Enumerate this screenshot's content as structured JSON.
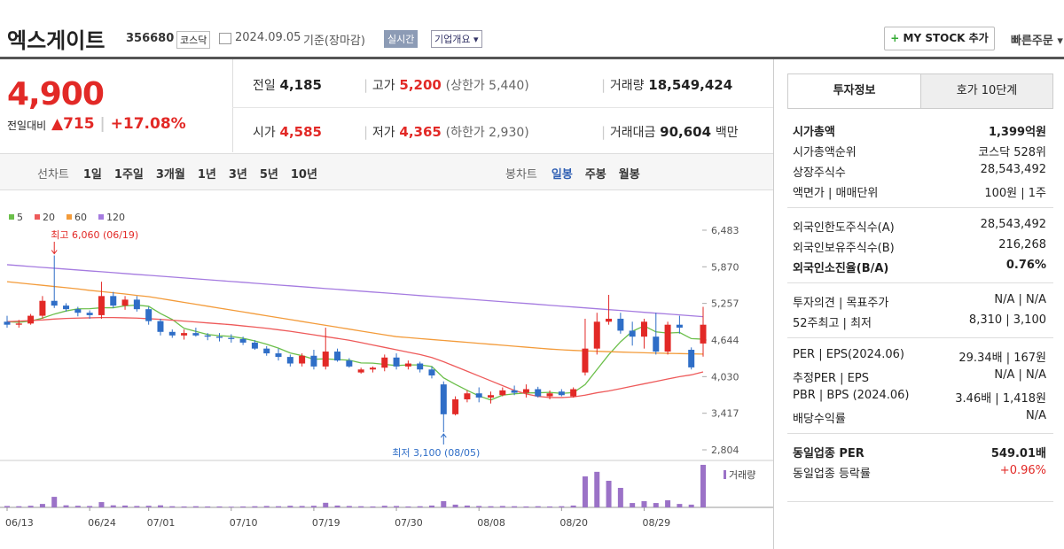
{
  "header": {
    "name": "엑스게이트",
    "code": "356680",
    "market": "코스닥",
    "date": "2024.09.05",
    "basis": "기준(장마감)",
    "realtime": "실시간",
    "overview": "기업개요",
    "my_stock": "MY STOCK 추가",
    "quick_order": "빠른주문"
  },
  "price": {
    "current": "4,900",
    "change_label": "전일대비",
    "change": "715",
    "change_pct": "+17.08%"
  },
  "quotes": [
    {
      "label": "전일",
      "value": "4,185"
    },
    {
      "label": "고가",
      "value": "5,200",
      "extra": "(상한가 5,440)"
    },
    {
      "label": "거래량",
      "value": "18,549,424"
    },
    {
      "label": "시가",
      "value": "4,585"
    },
    {
      "label": "저가",
      "value": "4,365",
      "extra": "(하한가 2,930)"
    },
    {
      "label": "거래대금",
      "value": "90,604",
      "unit": "백만"
    }
  ],
  "line_periods": {
    "label": "선차트",
    "items": [
      "1일",
      "1주일",
      "3개월",
      "1년",
      "3년",
      "5년",
      "10년"
    ]
  },
  "candle_periods": {
    "label": "봉차트",
    "items": [
      "일봉",
      "주봉",
      "월봉"
    ]
  },
  "chart_data": {
    "type": "candlestick",
    "categories": [
      "06/13",
      null,
      null,
      null,
      null,
      null,
      null,
      "06/24",
      null,
      null,
      null,
      null,
      "07/01",
      null,
      null,
      null,
      null,
      null,
      null,
      "07/10",
      null,
      null,
      null,
      null,
      null,
      null,
      "07/19",
      null,
      null,
      null,
      null,
      null,
      null,
      "07/30",
      null,
      null,
      null,
      null,
      null,
      null,
      "08/08",
      null,
      null,
      null,
      null,
      null,
      null,
      "08/20",
      null,
      null,
      null,
      null,
      null,
      null,
      "08/29",
      null,
      null,
      null,
      null,
      null
    ],
    "open": [
      4950,
      4900,
      4920,
      5050,
      5300,
      5220,
      5160,
      5100,
      5060,
      5380,
      5220,
      5320,
      5160,
      4960,
      4780,
      4720,
      4760,
      4720,
      4700,
      4680,
      4660,
      4600,
      4500,
      4420,
      4360,
      4250,
      4380,
      4200,
      4450,
      4300,
      4100,
      4150,
      4180,
      4350,
      4200,
      4250,
      4150,
      3900,
      3400,
      3650,
      3750,
      3680,
      3720,
      3800,
      3760,
      3820,
      3700,
      3780,
      3700,
      4100,
      4500,
      4950,
      5000,
      4800,
      4700,
      4700,
      4450,
      4900,
      4480,
      4585
    ],
    "high": [
      5050,
      4980,
      5080,
      5380,
      6060,
      5260,
      5200,
      5140,
      5620,
      5450,
      5380,
      5380,
      5200,
      5000,
      4820,
      4820,
      4850,
      4760,
      4760,
      4740,
      4700,
      4640,
      4540,
      4500,
      4400,
      4420,
      4480,
      4850,
      4500,
      4340,
      4180,
      4200,
      4400,
      4420,
      4300,
      4280,
      4200,
      3950,
      3700,
      3800,
      3850,
      3780,
      3850,
      3880,
      3900,
      3860,
      3800,
      3820,
      3850,
      5000,
      5100,
      5400,
      5100,
      4950,
      5000,
      5100,
      4950,
      5050,
      4520,
      5200
    ],
    "low": [
      4850,
      4850,
      4900,
      5000,
      5180,
      5120,
      5040,
      5000,
      5000,
      5180,
      5150,
      5120,
      4900,
      4720,
      4680,
      4650,
      4700,
      4640,
      4620,
      4600,
      4560,
      4480,
      4380,
      4300,
      4200,
      4200,
      4150,
      4150,
      4280,
      4180,
      4080,
      4100,
      4120,
      4150,
      4150,
      4100,
      4000,
      3100,
      3380,
      3600,
      3600,
      3580,
      3700,
      3720,
      3680,
      3680,
      3650,
      3700,
      3680,
      4050,
      4400,
      4900,
      4750,
      4550,
      4500,
      4400,
      4400,
      4750,
      4150,
      4365
    ],
    "close": [
      4900,
      4920,
      5050,
      5300,
      5220,
      5160,
      5100,
      5060,
      5380,
      5220,
      5320,
      5160,
      4960,
      4780,
      4720,
      4760,
      4720,
      4700,
      4680,
      4660,
      4600,
      4500,
      4420,
      4360,
      4250,
      4380,
      4200,
      4450,
      4300,
      4200,
      4150,
      4180,
      4350,
      4200,
      4250,
      4150,
      4050,
      3400,
      3650,
      3750,
      3680,
      3720,
      3800,
      3760,
      3820,
      3700,
      3750,
      3720,
      3820,
      4500,
      4950,
      5000,
      4800,
      4700,
      4950,
      4450,
      4900,
      4850,
      4185,
      4900
    ],
    "up_color": "#e22926",
    "down_color": "#2f6ec7",
    "ma": [
      {
        "name": "5",
        "color": "#6bbf4a",
        "values": [
          4950,
          4940,
          4960,
          5010,
          5078,
          5130,
          5166,
          5168,
          5184,
          5184,
          5216,
          5228,
          5208,
          5088,
          4988,
          4840,
          4788,
          4736,
          4716,
          4704,
          4672,
          4628,
          4572,
          4508,
          4426,
          4382,
          4322,
          4328,
          4316,
          4306,
          4260,
          4256,
          4236,
          4216,
          4226,
          4226,
          4200,
          4010,
          3900,
          3800,
          3706,
          3640,
          3720,
          3742,
          3756,
          3760,
          3766,
          3750,
          3762,
          3898,
          4148,
          4398,
          4614,
          4790,
          4880,
          4780,
          4760,
          4770,
          4667,
          4657
        ]
      },
      {
        "name": "20",
        "color": "#ee5a5a",
        "values": [
          4950,
          4960,
          4970,
          4980,
          4995,
          5005,
          5010,
          5015,
          5020,
          5020,
          5015,
          5010,
          5000,
          4990,
          4975,
          4960,
          4945,
          4930,
          4915,
          4900,
          4880,
          4860,
          4840,
          4815,
          4790,
          4760,
          4730,
          4700,
          4670,
          4640,
          4600,
          4560,
          4520,
          4480,
          4440,
          4400,
          4350,
          4280,
          4200,
          4120,
          4040,
          3960,
          3880,
          3800,
          3740,
          3700,
          3680,
          3680,
          3690,
          3720,
          3760,
          3790,
          3830,
          3870,
          3910,
          3950,
          3990,
          4030,
          4060,
          4110
        ]
      },
      {
        "name": "60",
        "color": "#f39b3a",
        "values": [
          5620,
          5600,
          5580,
          5560,
          5540,
          5520,
          5500,
          5475,
          5455,
          5435,
          5415,
          5390,
          5370,
          5338,
          5306,
          5274,
          5242,
          5210,
          5178,
          5146,
          5114,
          5082,
          5050,
          5018,
          4986,
          4954,
          4922,
          4890,
          4858,
          4826,
          4794,
          4762,
          4730,
          4700,
          4684,
          4668,
          4652,
          4636,
          4620,
          4604,
          4588,
          4572,
          4556,
          4540,
          4524,
          4508,
          4492,
          4480,
          4470,
          4462,
          4455,
          4448,
          4442,
          4436,
          4430,
          4425,
          4420,
          4416,
          4412,
          4408
        ]
      },
      {
        "name": "120",
        "color": "#a57be0",
        "values": [
          5905,
          5890,
          5875,
          5860,
          5846,
          5831,
          5816,
          5801,
          5787,
          5772,
          5757,
          5742,
          5728,
          5713,
          5698,
          5683,
          5669,
          5654,
          5639,
          5624,
          5610,
          5595,
          5580,
          5565,
          5551,
          5536,
          5521,
          5506,
          5492,
          5477,
          5462,
          5447,
          5433,
          5418,
          5403,
          5388,
          5374,
          5359,
          5344,
          5329,
          5315,
          5300,
          5285,
          5270,
          5256,
          5241,
          5226,
          5211,
          5197,
          5182,
          5167,
          5152,
          5138,
          5123,
          5108,
          5093,
          5079,
          5064,
          5049,
          5034
        ]
      }
    ],
    "ylim": [
      2626,
      6631
    ],
    "yticks": [
      {
        "value": 6483,
        "label": "6,483"
      },
      {
        "value": 5870,
        "label": "5,870"
      },
      {
        "value": 5257,
        "label": "5,257"
      },
      {
        "value": 4644,
        "label": "4,644"
      },
      {
        "value": 4030,
        "label": "4,030"
      },
      {
        "value": 3417,
        "label": "3,417"
      },
      {
        "value": 2804,
        "label": "2,804"
      }
    ],
    "volume_label": "거래량",
    "volume_color": "#9b72c7",
    "volume_lim": [
      0,
      19300000
    ],
    "volume": [
      600000,
      500000,
      700000,
      1500000,
      4600000,
      900000,
      700000,
      600000,
      2300000,
      900000,
      800000,
      600000,
      700000,
      900000,
      500000,
      400000,
      500000,
      400000,
      400000,
      300000,
      400000,
      500000,
      600000,
      500000,
      700000,
      600000,
      700000,
      2000000,
      800000,
      600000,
      500000,
      400000,
      700000,
      600000,
      400000,
      500000,
      800000,
      2700000,
      1200000,
      800000,
      600000,
      500000,
      600000,
      500000,
      400000,
      500000,
      400000,
      500000,
      800000,
      13500000,
      15500000,
      11600000,
      8500000,
      1900000,
      2700000,
      1900000,
      3100000,
      1500000,
      1200000,
      18549424
    ],
    "high_label": "최고 6,060 (06/19)",
    "low_label": "최저 3,100 (08/05)"
  },
  "info": {
    "tabs": [
      "투자정보",
      "호가 10단계"
    ],
    "sections": [
      [
        [
          "시가총액",
          "1,399억원"
        ],
        [
          "시가총액순위",
          "코스닥 528위"
        ],
        [
          "상장주식수",
          "28,543,492"
        ],
        [
          "액면가 | 매매단위",
          "100원 | 1주"
        ]
      ],
      [
        [
          "외국인한도주식수(A)",
          "28,543,492"
        ],
        [
          "외국인보유주식수(B)",
          "216,268"
        ],
        [
          "외국인소진율(B/A)",
          "0.76%"
        ]
      ],
      [
        [
          "투자의견 | 목표주가",
          "N/A | N/A"
        ],
        [
          "52주최고 | 최저",
          "8,310 | 3,100"
        ]
      ],
      [
        [
          "PER | EPS(2024.06)",
          "29.34배 | 167원"
        ],
        [
          "추정PER | EPS",
          "N/A | N/A"
        ],
        [
          "PBR | BPS (2024.06)",
          "3.46배 | 1,418원"
        ],
        [
          "배당수익률",
          "N/A"
        ]
      ],
      [
        [
          "동일업종 PER",
          "549.01배"
        ],
        [
          "동일업종 등락률",
          "+0.96%"
        ]
      ]
    ]
  }
}
